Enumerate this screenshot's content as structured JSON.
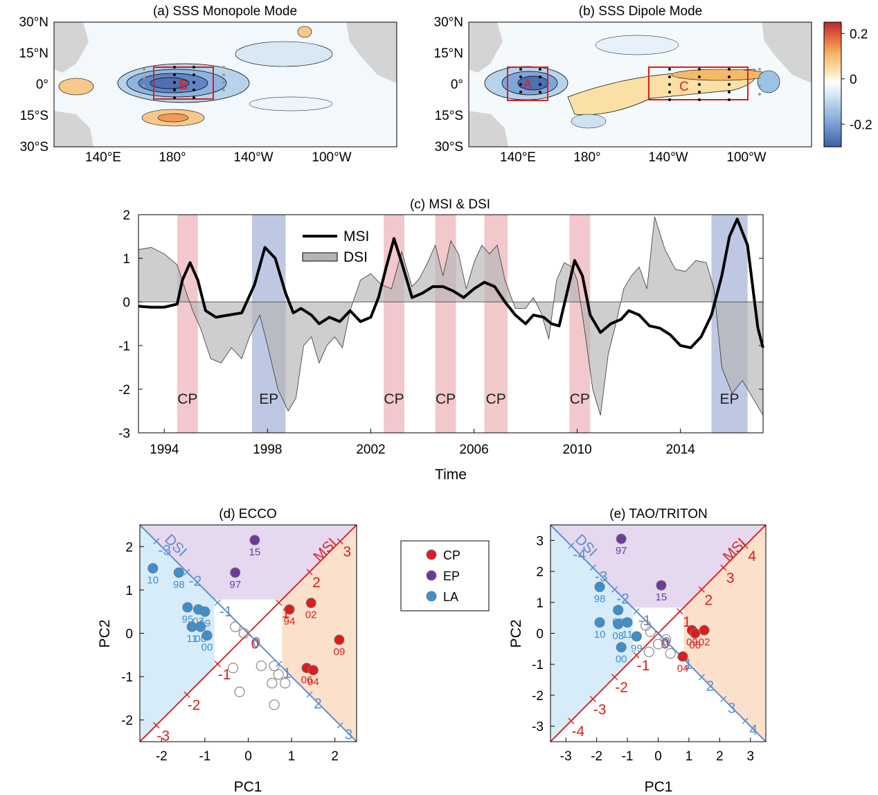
{
  "panel_a": {
    "title": "(a) SSS Monopole Mode",
    "box_label": "B",
    "lat_ticks": [
      "30°N",
      "15°N",
      "0°",
      "15°S",
      "30°S"
    ],
    "lon_ticks": [
      "140°E",
      "180°",
      "140°W",
      "100°W"
    ]
  },
  "panel_b": {
    "title": "(b) SSS Dipole Mode",
    "box_labels": [
      "A",
      "C"
    ],
    "lat_ticks": [
      "30°N",
      "15°N",
      "0°",
      "15°S",
      "30°S"
    ],
    "lon_ticks": [
      "140°E",
      "180°",
      "140°W",
      "100°W"
    ]
  },
  "colorbar": {
    "ticks": [
      "0.2",
      "0",
      "-0.2"
    ],
    "values": [
      0.2,
      0,
      -0.2
    ],
    "range": [
      -0.3,
      0.25
    ]
  },
  "chart_data": [
    {
      "type": "line",
      "title": "(c) MSI & DSI",
      "xlabel": "Time",
      "ylabel": "",
      "xlim": [
        1993,
        2017.2
      ],
      "ylim": [
        -3,
        2
      ],
      "x_ticks": [
        "1994",
        "1998",
        "2002",
        "2006",
        "2010",
        "2014"
      ],
      "x_tick_values": [
        1994,
        1998,
        2002,
        2006,
        2010,
        2014
      ],
      "y_ticks": [
        "2",
        "1",
        "0",
        "-1",
        "-2",
        "-3"
      ],
      "y_tick_values": [
        2,
        1,
        0,
        -1,
        -2,
        -3
      ],
      "legend": {
        "placement": "top-center",
        "entries": [
          "MSI",
          "DSI"
        ]
      },
      "events": [
        {
          "label": "CP",
          "start": 1994.5,
          "end": 1995.3,
          "color": "#f2c8cc"
        },
        {
          "label": "EP",
          "start": 1997.4,
          "end": 1998.7,
          "color": "#bfc8e3"
        },
        {
          "label": "CP",
          "start": 2002.5,
          "end": 2003.3,
          "color": "#f2c8cc"
        },
        {
          "label": "CP",
          "start": 2004.5,
          "end": 2005.3,
          "color": "#f2c8cc"
        },
        {
          "label": "CP",
          "start": 2006.4,
          "end": 2007.3,
          "color": "#f2c8cc"
        },
        {
          "label": "CP",
          "start": 2009.7,
          "end": 2010.5,
          "color": "#f2c8cc"
        },
        {
          "label": "EP",
          "start": 2015.2,
          "end": 2016.6,
          "color": "#bfc8e3"
        }
      ],
      "series": [
        {
          "name": "MSI",
          "style": "line",
          "color": "#000000",
          "x": [
            1993,
            1993.5,
            1994,
            1994.5,
            1994.7,
            1995.0,
            1995.3,
            1995.6,
            1996.0,
            1996.5,
            1997.0,
            1997.5,
            1997.9,
            1998.3,
            1998.7,
            1999.0,
            1999.3,
            1999.7,
            2000.0,
            2000.4,
            2000.8,
            2001.2,
            2001.6,
            2002.0,
            2002.3,
            2002.6,
            2002.9,
            2003.2,
            2003.6,
            2004.0,
            2004.4,
            2004.8,
            2005.2,
            2005.6,
            2006.0,
            2006.4,
            2006.8,
            2007.2,
            2007.6,
            2008.0,
            2008.3,
            2008.7,
            2009.0,
            2009.3,
            2009.6,
            2009.9,
            2010.2,
            2010.5,
            2010.9,
            2011.3,
            2011.7,
            2012.0,
            2012.4,
            2012.8,
            2013.2,
            2013.6,
            2014.0,
            2014.4,
            2014.8,
            2015.2,
            2015.6,
            2015.9,
            2016.2,
            2016.6,
            2017.0,
            2017.2
          ],
          "values": [
            -0.1,
            -0.12,
            -0.12,
            -0.05,
            0.5,
            0.9,
            0.5,
            -0.2,
            -0.35,
            -0.3,
            -0.25,
            0.4,
            1.25,
            1.0,
            0.2,
            -0.25,
            -0.15,
            -0.3,
            -0.5,
            -0.35,
            -0.45,
            -0.2,
            -0.45,
            -0.35,
            0.1,
            0.8,
            1.45,
            0.9,
            0.1,
            0.2,
            0.35,
            0.35,
            0.25,
            0.1,
            0.3,
            0.45,
            0.35,
            0.0,
            -0.3,
            -0.5,
            -0.3,
            -0.35,
            -0.5,
            -0.55,
            0.2,
            0.95,
            0.6,
            -0.3,
            -0.7,
            -0.5,
            -0.4,
            -0.2,
            -0.3,
            -0.55,
            -0.6,
            -0.75,
            -1.0,
            -1.05,
            -0.8,
            -0.3,
            0.6,
            1.5,
            1.9,
            1.3,
            -0.6,
            -1.05
          ]
        },
        {
          "name": "DSI",
          "style": "area",
          "color": "#b4b4b4",
          "x": [
            1993,
            1993.5,
            1994,
            1994.5,
            1994.8,
            1995.1,
            1995.4,
            1995.8,
            1996.2,
            1996.6,
            1997.0,
            1997.3,
            1997.7,
            1998.0,
            1998.4,
            1998.8,
            1999.1,
            1999.4,
            1999.7,
            2000.0,
            2000.3,
            2000.6,
            2000.9,
            2001.2,
            2001.6,
            2002.0,
            2002.4,
            2002.8,
            2003.2,
            2003.6,
            2003.9,
            2004.2,
            2004.5,
            2004.8,
            2005.1,
            2005.4,
            2005.7,
            2006.0,
            2006.3,
            2006.6,
            2006.9,
            2007.2,
            2007.6,
            2008.0,
            2008.3,
            2008.6,
            2008.9,
            2009.2,
            2009.5,
            2009.8,
            2010.0,
            2010.3,
            2010.6,
            2010.9,
            2011.2,
            2011.5,
            2011.8,
            2012.1,
            2012.4,
            2012.7,
            2013.0,
            2013.4,
            2013.8,
            2014.2,
            2014.6,
            2015.0,
            2015.3,
            2015.6,
            2016.0,
            2016.4,
            2016.8,
            2017.2
          ],
          "values": [
            1.2,
            1.25,
            1.1,
            0.85,
            0.3,
            -0.2,
            -0.6,
            -1.3,
            -1.4,
            -1.05,
            -1.3,
            -0.8,
            -0.3,
            -1.0,
            -2.0,
            -2.5,
            -2.2,
            -1.0,
            -0.8,
            -1.4,
            -1.0,
            -0.8,
            -1.05,
            -0.2,
            0.5,
            0.65,
            0.4,
            0.3,
            1.15,
            0.35,
            0.55,
            0.9,
            1.3,
            0.6,
            1.4,
            1.1,
            0.3,
            0.9,
            1.3,
            1.1,
            1.3,
            0.5,
            -0.15,
            -0.15,
            0.1,
            -0.25,
            -0.85,
            0.5,
            0.9,
            0.8,
            0.5,
            -0.7,
            -2.0,
            -2.6,
            -1.2,
            -0.5,
            0.3,
            0.6,
            0.8,
            0.3,
            1.95,
            1.2,
            0.75,
            0.7,
            0.95,
            0.9,
            0.3,
            -1.5,
            -2.1,
            -1.8,
            -2.2,
            -2.6
          ]
        }
      ]
    },
    {
      "type": "scatter",
      "title": "(d) ECCO",
      "xlabel": "PC1",
      "ylabel": "PC2",
      "xlim": [
        -2.5,
        2.5
      ],
      "ylim": [
        -2.5,
        2.5
      ],
      "x_ticks": [
        "-2",
        "-1",
        "0",
        "1",
        "2"
      ],
      "x_tick_values": [
        -2,
        -1,
        0,
        1,
        2
      ],
      "y_ticks": [
        "2",
        "1",
        "0",
        "-1",
        "-2"
      ],
      "y_tick_values": [
        2,
        1,
        0,
        -1,
        -2
      ],
      "axis_labels": {
        "msi": "MSI",
        "dsi": "DSI"
      },
      "msi_axis_ticks": [
        "-3",
        "-2",
        "-1",
        "0",
        "1",
        "2",
        "3"
      ],
      "msi_axis_values": [
        -3,
        -2,
        -1,
        0,
        1,
        2,
        3
      ],
      "dsi_axis_ticks": [
        "-3",
        "-2",
        "-1",
        "0",
        "1",
        "2",
        "3"
      ],
      "dsi_axis_values": [
        -3,
        -2,
        -1,
        0,
        1,
        2,
        3
      ],
      "points": [
        {
          "year": "15",
          "category": "EP",
          "x": 0.15,
          "y": 2.15
        },
        {
          "year": "97",
          "category": "EP",
          "x": -0.3,
          "y": 1.4
        },
        {
          "year": "94",
          "category": "CP",
          "x": 0.95,
          "y": 0.55
        },
        {
          "year": "02",
          "category": "CP",
          "x": 1.45,
          "y": 0.7
        },
        {
          "year": "09",
          "category": "CP",
          "x": 2.1,
          "y": -0.15
        },
        {
          "year": "06",
          "category": "CP",
          "x": 1.35,
          "y": -0.8
        },
        {
          "year": "04",
          "category": "CP",
          "x": 1.5,
          "y": -0.85
        },
        {
          "year": "10",
          "category": "LA",
          "x": -2.2,
          "y": 1.5
        },
        {
          "year": "98",
          "category": "LA",
          "x": -1.6,
          "y": 1.4
        },
        {
          "year": "95",
          "category": "LA",
          "x": -1.4,
          "y": 0.6
        },
        {
          "year": "07",
          "category": "LA",
          "x": -1.15,
          "y": 0.55
        },
        {
          "year": "99",
          "category": "LA",
          "x": -1.0,
          "y": 0.5
        },
        {
          "year": "11",
          "category": "LA",
          "x": -1.3,
          "y": 0.15
        },
        {
          "year": "08",
          "category": "LA",
          "x": -1.1,
          "y": 0.15
        },
        {
          "year": "00",
          "category": "LA",
          "x": -0.95,
          "y": -0.05
        }
      ],
      "neutral": [
        [
          -0.3,
          0.15
        ],
        [
          -0.1,
          0.0
        ],
        [
          -0.35,
          -0.8
        ],
        [
          0.3,
          -0.75
        ],
        [
          0.6,
          -0.75
        ],
        [
          0.7,
          -0.95
        ],
        [
          0.55,
          -1.15
        ],
        [
          0.85,
          -1.15
        ],
        [
          -0.2,
          -1.35
        ],
        [
          0.6,
          -1.65
        ]
      ]
    },
    {
      "type": "scatter",
      "title": "(e) TAO/TRITON",
      "xlabel": "PC1",
      "ylabel": "PC2",
      "xlim": [
        -3.5,
        3.5
      ],
      "ylim": [
        -3.5,
        3.5
      ],
      "x_ticks": [
        "-3",
        "-2",
        "-1",
        "0",
        "1",
        "2",
        "3"
      ],
      "x_tick_values": [
        -3,
        -2,
        -1,
        0,
        1,
        2,
        3
      ],
      "y_ticks": [
        "3",
        "2",
        "1",
        "0",
        "-1",
        "-2",
        "-3"
      ],
      "y_tick_values": [
        3,
        2,
        1,
        0,
        -1,
        -2,
        -3
      ],
      "axis_labels": {
        "msi": "MSI",
        "dsi": "DSI"
      },
      "msi_axis_ticks": [
        "-4",
        "-3",
        "-2",
        "-1",
        "0",
        "1",
        "2",
        "3",
        "4"
      ],
      "msi_axis_values": [
        -4,
        -3,
        -2,
        -1,
        0,
        1,
        2,
        3,
        4
      ],
      "dsi_axis_ticks": [
        "-4",
        "-3",
        "-2",
        "-1",
        "0",
        "1",
        "2",
        "3",
        "4"
      ],
      "dsi_axis_values": [
        -4,
        -3,
        -2,
        -1,
        0,
        1,
        2,
        3,
        4
      ],
      "points": [
        {
          "year": "97",
          "category": "EP",
          "x": -1.2,
          "y": 3.05
        },
        {
          "year": "15",
          "category": "EP",
          "x": 0.1,
          "y": 1.55
        },
        {
          "year": "09",
          "category": "CP",
          "x": 1.1,
          "y": 0.1
        },
        {
          "year": "06",
          "category": "CP",
          "x": 1.2,
          "y": 0.0
        },
        {
          "year": "02",
          "category": "CP",
          "x": 1.5,
          "y": 0.1
        },
        {
          "year": "04",
          "category": "CP",
          "x": 0.8,
          "y": -0.75
        },
        {
          "year": "98",
          "category": "LA",
          "x": -1.9,
          "y": 1.5
        },
        {
          "year": "07",
          "category": "LA",
          "x": -1.3,
          "y": 0.75
        },
        {
          "year": "10",
          "category": "LA",
          "x": -1.9,
          "y": 0.35
        },
        {
          "year": "08",
          "category": "LA",
          "x": -1.3,
          "y": 0.3
        },
        {
          "year": "11",
          "category": "LA",
          "x": -1.0,
          "y": 0.35
        },
        {
          "year": "99",
          "category": "LA",
          "x": -0.7,
          "y": -0.1
        },
        {
          "year": "00",
          "category": "LA",
          "x": -1.2,
          "y": -0.45
        }
      ],
      "neutral": [
        [
          -0.4,
          0.25
        ],
        [
          -0.25,
          0.05
        ],
        [
          -0.3,
          -0.6
        ],
        [
          0.0,
          -0.35
        ],
        [
          0.25,
          -0.2
        ],
        [
          0.4,
          -0.65
        ]
      ]
    }
  ],
  "legend_de": {
    "entries": [
      {
        "label": "CP",
        "color": "#e01b1b"
      },
      {
        "label": "EP",
        "color": "#6a3a9c"
      },
      {
        "label": "LA",
        "color": "#3d8fd0"
      }
    ]
  },
  "colors": {
    "cp": "#e01b1b",
    "ep": "#6a3a9c",
    "la": "#3d8fd0",
    "msi_axis": "#d42a2a",
    "dsi_axis": "#5b8fcf"
  }
}
